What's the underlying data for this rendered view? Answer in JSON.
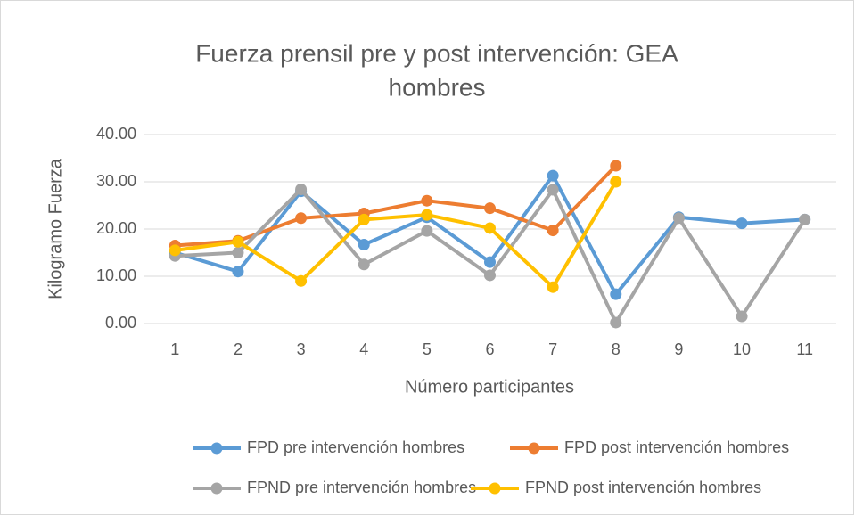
{
  "chart_data": {
    "type": "line",
    "title": "Fuerza prensil pre y post intervención: GEA hombres",
    "title_lines": [
      "Fuerza prensil pre y post intervención: GEA",
      "hombres"
    ],
    "x_label": "Número participantes",
    "y_label": "Kilogramo Fuerza",
    "categories": [
      1,
      2,
      3,
      4,
      5,
      6,
      7,
      8,
      9,
      10,
      11
    ],
    "series": [
      {
        "name": "FPD pre intervención hombres",
        "color": "#5b9bd5",
        "values": [
          15.0,
          11.0,
          28.0,
          16.7,
          22.5,
          13.0,
          31.3,
          6.2,
          22.5,
          21.2,
          22.0
        ]
      },
      {
        "name": "FPD post intervención hombres",
        "color": "#ed7d31",
        "values": [
          16.5,
          17.5,
          22.3,
          23.3,
          26.0,
          24.4,
          19.7,
          33.4,
          null,
          null,
          null
        ]
      },
      {
        "name": "FPND pre intervención hombres",
        "color": "#a5a5a5",
        "values": [
          14.3,
          15.0,
          28.4,
          12.5,
          19.6,
          10.2,
          28.3,
          0.2,
          22.3,
          1.5,
          22.0
        ]
      },
      {
        "name": "FPND post intervención hombres",
        "color": "#ffc000",
        "values": [
          15.5,
          17.3,
          9.0,
          22.0,
          23.0,
          20.2,
          7.7,
          30.0,
          null,
          null,
          null
        ]
      }
    ],
    "ylim": [
      0,
      40
    ],
    "yticks": [
      {
        "value": 0,
        "label": "0.00"
      },
      {
        "value": 10,
        "label": "10.00"
      },
      {
        "value": 20,
        "label": "20.00"
      },
      {
        "value": 30,
        "label": "30.00"
      },
      {
        "value": 40,
        "label": "40.00"
      }
    ],
    "grid": true,
    "legend": "bottom"
  }
}
